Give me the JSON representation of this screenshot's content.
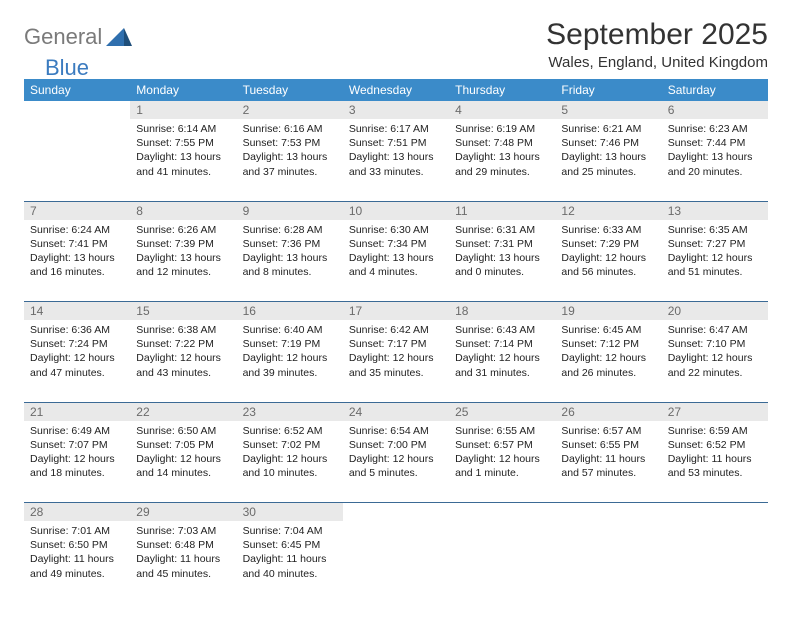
{
  "brand": {
    "part1": "General",
    "part2": "Blue"
  },
  "title": "September 2025",
  "location": "Wales, England, United Kingdom",
  "colors": {
    "header_bg": "#3b8bc9",
    "header_text": "#ffffff",
    "daynum_bg": "#e9e9e9",
    "daynum_text": "#6b6b6b",
    "row_border": "#3b6a95",
    "brand_gray": "#7a7a7a",
    "brand_blue": "#3b7bbf"
  },
  "weekdays": [
    "Sunday",
    "Monday",
    "Tuesday",
    "Wednesday",
    "Thursday",
    "Friday",
    "Saturday"
  ],
  "days": {
    "1": {
      "sunrise": "6:14 AM",
      "sunset": "7:55 PM",
      "daylight": "13 hours and 41 minutes."
    },
    "2": {
      "sunrise": "6:16 AM",
      "sunset": "7:53 PM",
      "daylight": "13 hours and 37 minutes."
    },
    "3": {
      "sunrise": "6:17 AM",
      "sunset": "7:51 PM",
      "daylight": "13 hours and 33 minutes."
    },
    "4": {
      "sunrise": "6:19 AM",
      "sunset": "7:48 PM",
      "daylight": "13 hours and 29 minutes."
    },
    "5": {
      "sunrise": "6:21 AM",
      "sunset": "7:46 PM",
      "daylight": "13 hours and 25 minutes."
    },
    "6": {
      "sunrise": "6:23 AM",
      "sunset": "7:44 PM",
      "daylight": "13 hours and 20 minutes."
    },
    "7": {
      "sunrise": "6:24 AM",
      "sunset": "7:41 PM",
      "daylight": "13 hours and 16 minutes."
    },
    "8": {
      "sunrise": "6:26 AM",
      "sunset": "7:39 PM",
      "daylight": "13 hours and 12 minutes."
    },
    "9": {
      "sunrise": "6:28 AM",
      "sunset": "7:36 PM",
      "daylight": "13 hours and 8 minutes."
    },
    "10": {
      "sunrise": "6:30 AM",
      "sunset": "7:34 PM",
      "daylight": "13 hours and 4 minutes."
    },
    "11": {
      "sunrise": "6:31 AM",
      "sunset": "7:31 PM",
      "daylight": "13 hours and 0 minutes."
    },
    "12": {
      "sunrise": "6:33 AM",
      "sunset": "7:29 PM",
      "daylight": "12 hours and 56 minutes."
    },
    "13": {
      "sunrise": "6:35 AM",
      "sunset": "7:27 PM",
      "daylight": "12 hours and 51 minutes."
    },
    "14": {
      "sunrise": "6:36 AM",
      "sunset": "7:24 PM",
      "daylight": "12 hours and 47 minutes."
    },
    "15": {
      "sunrise": "6:38 AM",
      "sunset": "7:22 PM",
      "daylight": "12 hours and 43 minutes."
    },
    "16": {
      "sunrise": "6:40 AM",
      "sunset": "7:19 PM",
      "daylight": "12 hours and 39 minutes."
    },
    "17": {
      "sunrise": "6:42 AM",
      "sunset": "7:17 PM",
      "daylight": "12 hours and 35 minutes."
    },
    "18": {
      "sunrise": "6:43 AM",
      "sunset": "7:14 PM",
      "daylight": "12 hours and 31 minutes."
    },
    "19": {
      "sunrise": "6:45 AM",
      "sunset": "7:12 PM",
      "daylight": "12 hours and 26 minutes."
    },
    "20": {
      "sunrise": "6:47 AM",
      "sunset": "7:10 PM",
      "daylight": "12 hours and 22 minutes."
    },
    "21": {
      "sunrise": "6:49 AM",
      "sunset": "7:07 PM",
      "daylight": "12 hours and 18 minutes."
    },
    "22": {
      "sunrise": "6:50 AM",
      "sunset": "7:05 PM",
      "daylight": "12 hours and 14 minutes."
    },
    "23": {
      "sunrise": "6:52 AM",
      "sunset": "7:02 PM",
      "daylight": "12 hours and 10 minutes."
    },
    "24": {
      "sunrise": "6:54 AM",
      "sunset": "7:00 PM",
      "daylight": "12 hours and 5 minutes."
    },
    "25": {
      "sunrise": "6:55 AM",
      "sunset": "6:57 PM",
      "daylight": "12 hours and 1 minute."
    },
    "26": {
      "sunrise": "6:57 AM",
      "sunset": "6:55 PM",
      "daylight": "11 hours and 57 minutes."
    },
    "27": {
      "sunrise": "6:59 AM",
      "sunset": "6:52 PM",
      "daylight": "11 hours and 53 minutes."
    },
    "28": {
      "sunrise": "7:01 AM",
      "sunset": "6:50 PM",
      "daylight": "11 hours and 49 minutes."
    },
    "29": {
      "sunrise": "7:03 AM",
      "sunset": "6:48 PM",
      "daylight": "11 hours and 45 minutes."
    },
    "30": {
      "sunrise": "7:04 AM",
      "sunset": "6:45 PM",
      "daylight": "11 hours and 40 minutes."
    }
  },
  "labels": {
    "sunrise": "Sunrise: ",
    "sunset": "Sunset: ",
    "daylight": "Daylight: "
  },
  "layout": {
    "first_weekday_index": 1,
    "days_in_month": 30,
    "weeks": [
      [
        null,
        1,
        2,
        3,
        4,
        5,
        6
      ],
      [
        7,
        8,
        9,
        10,
        11,
        12,
        13
      ],
      [
        14,
        15,
        16,
        17,
        18,
        19,
        20
      ],
      [
        21,
        22,
        23,
        24,
        25,
        26,
        27
      ],
      [
        28,
        29,
        30,
        null,
        null,
        null,
        null
      ]
    ]
  }
}
